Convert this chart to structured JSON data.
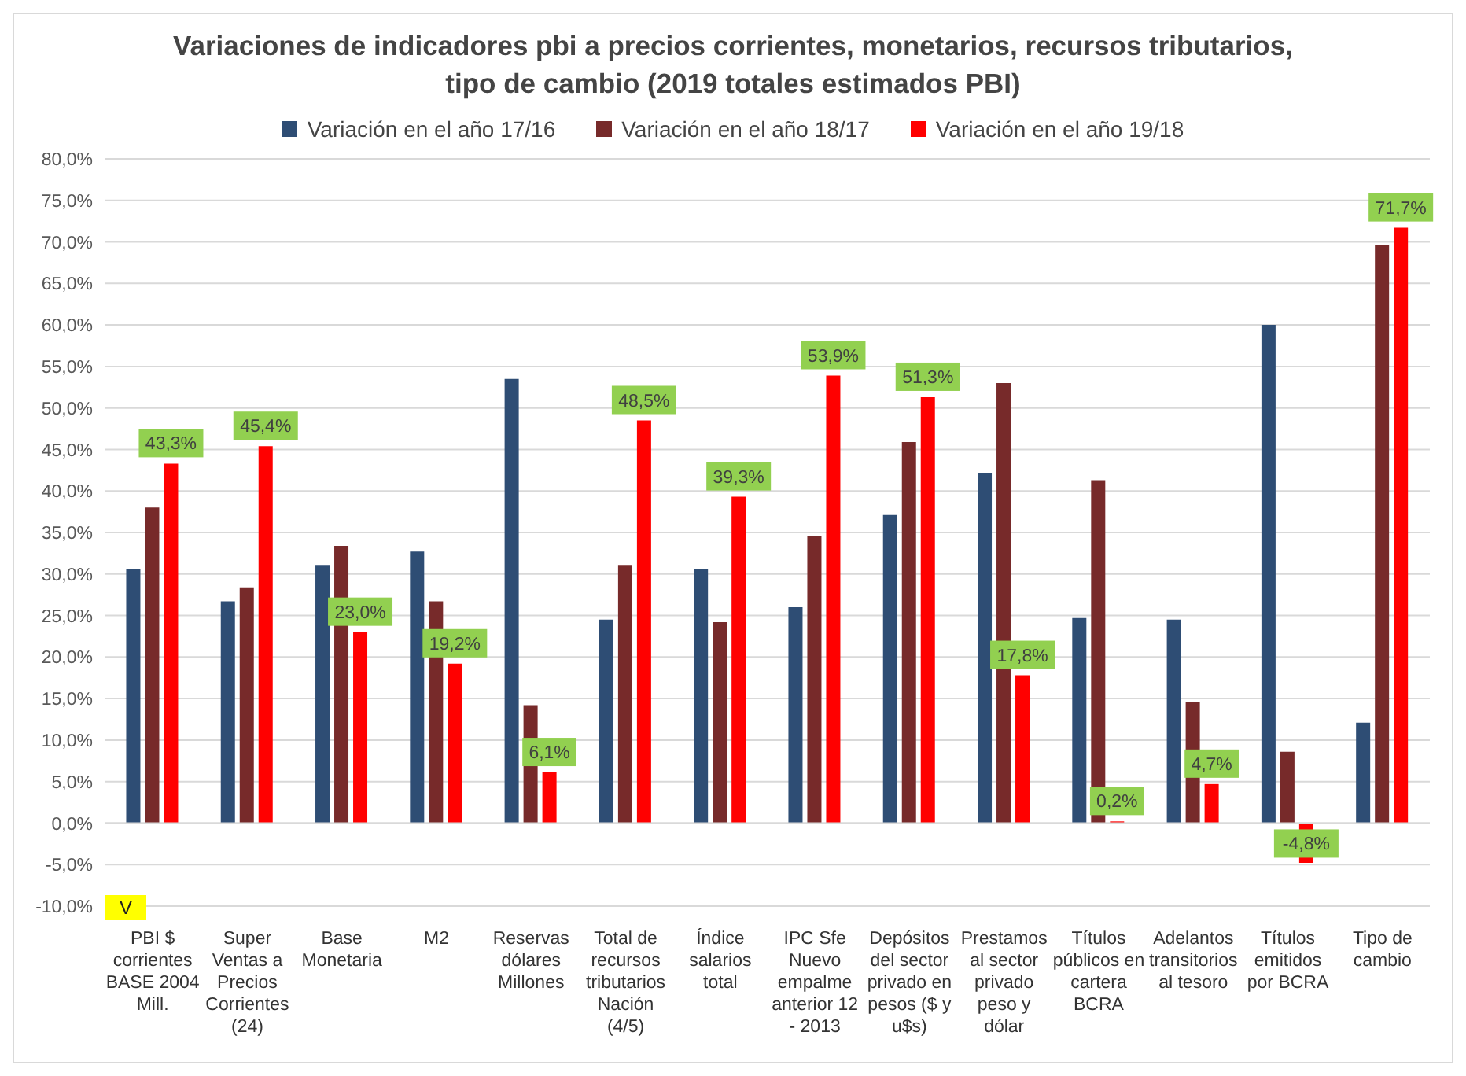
{
  "chart_data": {
    "type": "bar",
    "title": "Variaciones de indicadores pbi a precios corrientes, monetarios, recursos tributarios, tipo de cambio (2019 totales estimados PBI)",
    "categories": [
      "PBI $ corrientes BASE 2004 Mill.",
      "Super Ventas a Precios Corrientes (24)",
      "Base Monetaria",
      "M2",
      "Reservas dólares Millones",
      "Total de recursos tributarios Nación (4/5)",
      "Índice salarios total",
      "IPC Sfe Nuevo empalme anterior 12 - 2013",
      "Depósitos del sector privado en pesos ($ y u$s)",
      "Prestamos al sector privado peso y dólar",
      "Títulos públicos en cartera BCRA",
      "Adelantos transitorios al tesoro",
      "Títulos emitidos por BCRA",
      "Tipo de cambio"
    ],
    "series": [
      {
        "name": "Variación en el año 17/16",
        "color": "#2e4d74",
        "values": [
          30.6,
          26.7,
          31.1,
          32.7,
          53.5,
          24.5,
          30.6,
          26.0,
          37.1,
          42.2,
          24.7,
          24.5,
          60.0,
          12.1
        ]
      },
      {
        "name": "Variación en el año 18/17",
        "color": "#772a2a",
        "values": [
          38.0,
          28.4,
          33.4,
          26.7,
          14.2,
          31.1,
          24.2,
          34.6,
          45.9,
          53.0,
          41.3,
          14.6,
          8.6,
          69.6
        ]
      },
      {
        "name": "Variación en el año 19/18",
        "color": "#ff0000",
        "values": [
          43.3,
          45.4,
          23.0,
          19.2,
          6.1,
          48.5,
          39.3,
          53.9,
          51.3,
          17.8,
          0.2,
          4.7,
          -4.8,
          71.7
        ],
        "value_labels": [
          "43,3%",
          "45,4%",
          "23,0%",
          "19,2%",
          "6,1%",
          "48,5%",
          "39,3%",
          "53,9%",
          "51,3%",
          "17,8%",
          "0,2%",
          "4,7%",
          "-4,8%",
          "71,7%"
        ]
      }
    ],
    "ylim": [
      -10,
      80
    ],
    "yticks": [
      {
        "value": -10,
        "label": "-10,0%"
      },
      {
        "value": -5,
        "label": "-5,0%"
      },
      {
        "value": 0,
        "label": "0,0%"
      },
      {
        "value": 5,
        "label": "5,0%"
      },
      {
        "value": 10,
        "label": "10,0%"
      },
      {
        "value": 15,
        "label": "15,0%"
      },
      {
        "value": 20,
        "label": "20,0%"
      },
      {
        "value": 25,
        "label": "25,0%"
      },
      {
        "value": 30,
        "label": "30,0%"
      },
      {
        "value": 35,
        "label": "35,0%"
      },
      {
        "value": 40,
        "label": "40,0%"
      },
      {
        "value": 45,
        "label": "45,0%"
      },
      {
        "value": 50,
        "label": "50,0%"
      },
      {
        "value": 55,
        "label": "55,0%"
      },
      {
        "value": 60,
        "label": "60,0%"
      },
      {
        "value": 65,
        "label": "65,0%"
      },
      {
        "value": 70,
        "label": "70,0%"
      },
      {
        "value": 75,
        "label": "75,0%"
      },
      {
        "value": 80,
        "label": "80,0%"
      }
    ],
    "grid": "y",
    "legend": "top",
    "annotations": [
      "V"
    ]
  }
}
